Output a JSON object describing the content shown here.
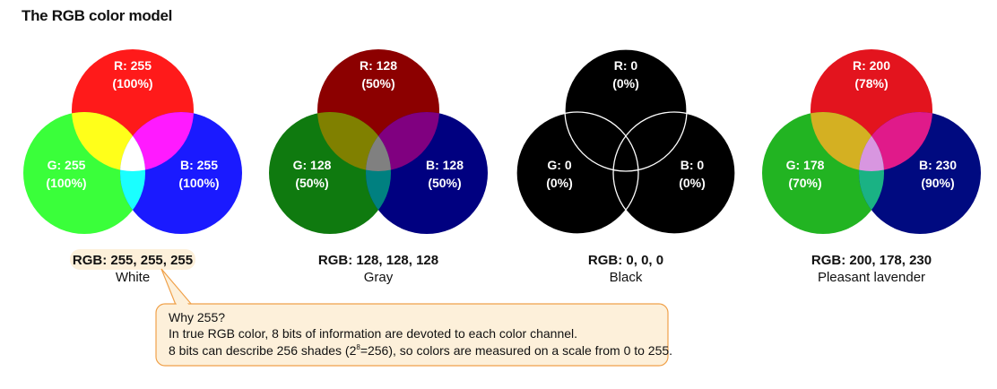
{
  "title": "The RGB color model",
  "models": [
    {
      "name": "White",
      "rgb_caption": "RGB: 255, 255, 255",
      "highlight_caption": true,
      "red": {
        "value": "R: 255",
        "pct": "(100%)"
      },
      "green": {
        "value": "G: 255",
        "pct": "(100%)"
      },
      "blue": {
        "value": "B: 255",
        "pct": "(100%)"
      },
      "colors": {
        "r": "#ff1a1a",
        "g": "#3aff3a",
        "b": "#1a1aff",
        "rg": "#ffff1a",
        "rb": "#ff1aff",
        "gb": "#1affff",
        "rgb": "#ffffff",
        "stroke": "none"
      }
    },
    {
      "name": "Gray",
      "rgb_caption": "RGB: 128, 128, 128",
      "highlight_caption": false,
      "red": {
        "value": "R: 128",
        "pct": "(50%)"
      },
      "green": {
        "value": "G: 128",
        "pct": "(50%)"
      },
      "blue": {
        "value": "B: 128",
        "pct": "(50%)"
      },
      "colors": {
        "r": "#8c0000",
        "g": "#0f7a0f",
        "b": "#000080",
        "rg": "#808000",
        "rb": "#800080",
        "gb": "#008080",
        "rgb": "#808080",
        "stroke": "none"
      }
    },
    {
      "name": "Black",
      "rgb_caption": "RGB: 0, 0, 0",
      "highlight_caption": false,
      "red": {
        "value": "R: 0",
        "pct": "(0%)"
      },
      "green": {
        "value": "G: 0",
        "pct": "(0%)"
      },
      "blue": {
        "value": "B: 0",
        "pct": "(0%)"
      },
      "colors": {
        "r": "#000000",
        "g": "#000000",
        "b": "#000000",
        "rg": "#000000",
        "rb": "#000000",
        "gb": "#000000",
        "rgb": "#000000",
        "stroke": "#ffffff"
      }
    },
    {
      "name": "Pleasant lavender",
      "rgb_caption": "RGB: 200, 178, 230",
      "highlight_caption": false,
      "red": {
        "value": "R: 200",
        "pct": "(78%)"
      },
      "green": {
        "value": "G: 178",
        "pct": "(70%)"
      },
      "blue": {
        "value": "B: 230",
        "pct": "(90%)"
      },
      "colors": {
        "r": "#e3141e",
        "g": "#22b422",
        "b": "#000a80",
        "rg": "#d4b022",
        "rb": "#e01a8a",
        "gb": "#1ab284",
        "rgb": "#d896e0",
        "stroke": "none"
      }
    }
  ],
  "callout": {
    "heading": "Why 255?",
    "line1": "In true RGB color, 8 bits of information are devoted to each color channel.",
    "line2_pre": "8 bits can describe 256 shades (2",
    "line2_sup": "8",
    "line2_post": "=256), so colors are measured on a scale from 0 to 255.",
    "fill": "#fdf0da",
    "border": "#f0a14a"
  }
}
